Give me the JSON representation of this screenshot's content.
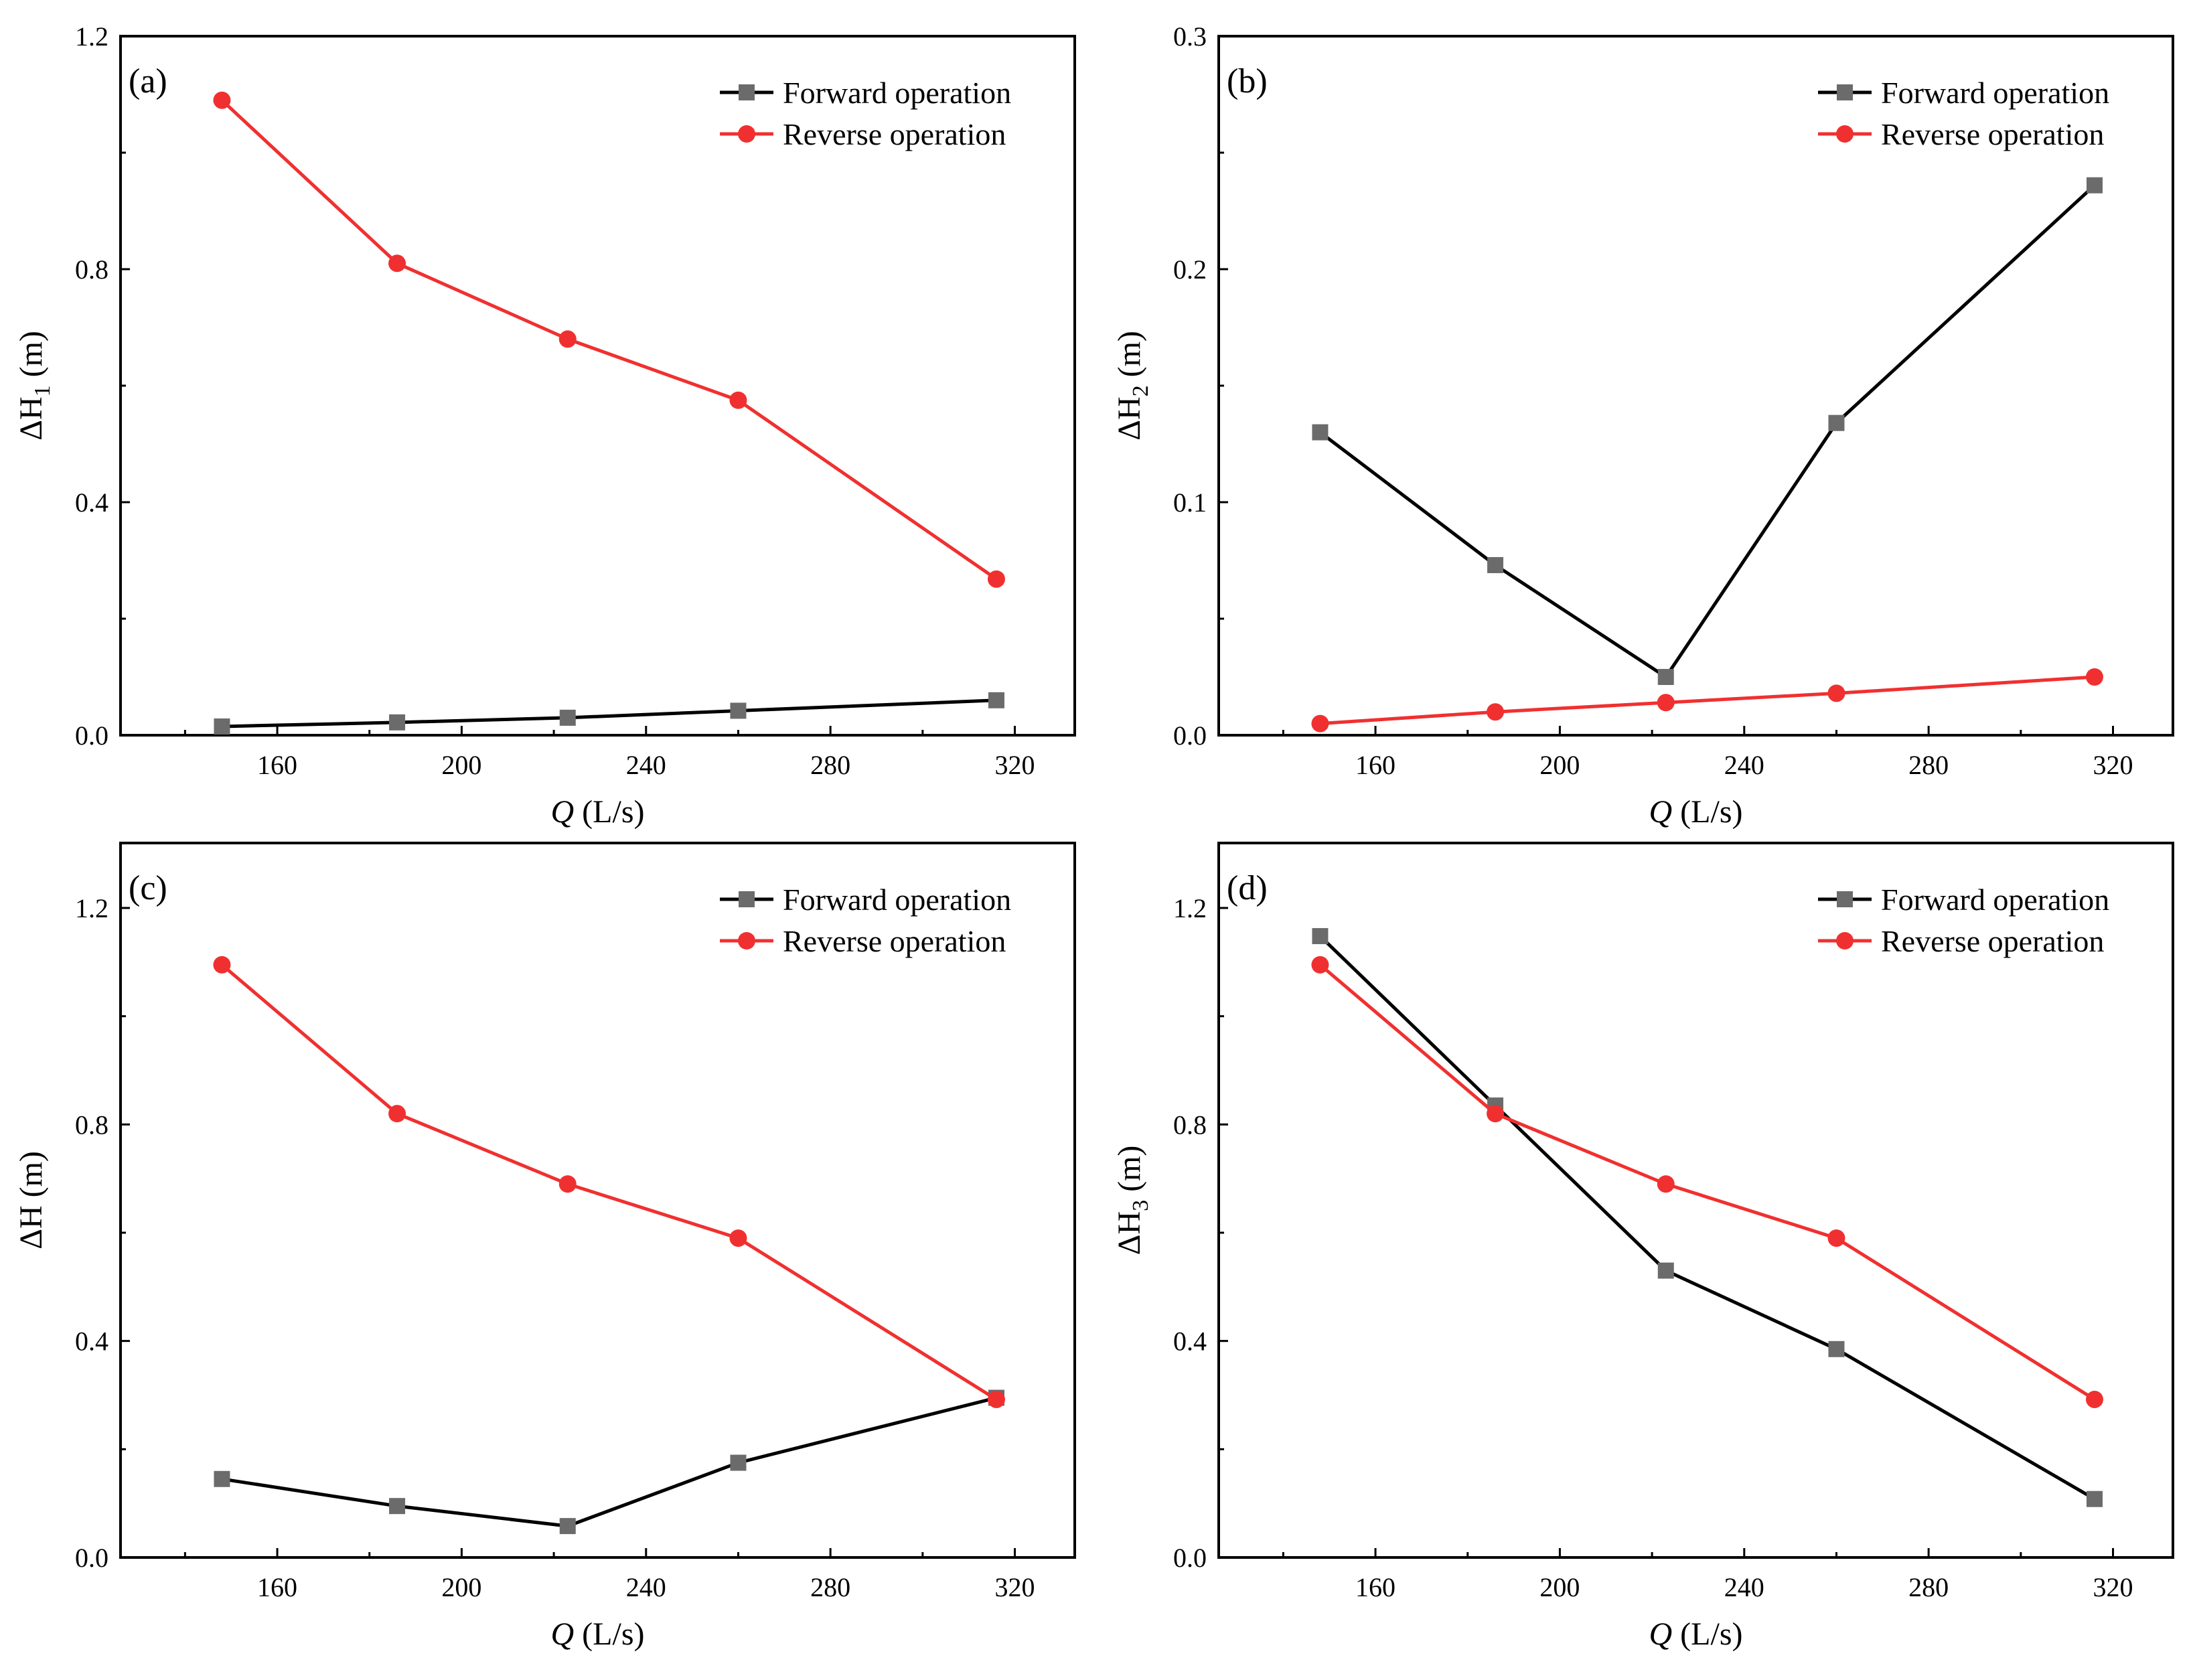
{
  "colors": {
    "forward": "#000000",
    "forward_marker": "#6b6b6b",
    "reverse": "#f03030",
    "axis": "#000000"
  },
  "chart_data": [
    {
      "type": "line",
      "panel_label": "(a)",
      "title": "",
      "xlabel": "Q",
      "xlabel_unit": " (L/s)",
      "ylabel": "ΔH",
      "ylabel_sub": "1",
      "ylabel_unit": " (m)",
      "xlim": [
        126,
        333
      ],
      "ylim": [
        0,
        1.2
      ],
      "xticks": [
        160,
        200,
        240,
        280,
        320
      ],
      "yticks": [
        0.0,
        0.4,
        0.8,
        1.2
      ],
      "ytick_labels": [
        "0.0",
        "0.4",
        "0.8",
        "1.2"
      ],
      "legend": "top-right",
      "x": [
        148,
        186,
        223,
        260,
        316
      ],
      "series": [
        {
          "name": "Forward operation",
          "marker": "square",
          "values": [
            0.015,
            0.022,
            0.03,
            0.042,
            0.06
          ]
        },
        {
          "name": "Reverse operation",
          "marker": "circle",
          "values": [
            1.09,
            0.81,
            0.68,
            0.575,
            0.268
          ]
        }
      ]
    },
    {
      "type": "line",
      "panel_label": "(b)",
      "title": "",
      "xlabel": "Q",
      "xlabel_unit": " (L/s)",
      "ylabel": "ΔH",
      "ylabel_sub": "2",
      "ylabel_unit": " (m)",
      "xlim": [
        126,
        333
      ],
      "ylim": [
        0,
        0.3
      ],
      "xticks": [
        160,
        200,
        240,
        280,
        320
      ],
      "yticks": [
        0.0,
        0.1,
        0.2,
        0.3
      ],
      "ytick_labels": [
        "0.0",
        "0.1",
        "0.2",
        "0.3"
      ],
      "legend": "top-right",
      "x": [
        148,
        186,
        223,
        260,
        316
      ],
      "series": [
        {
          "name": "Forward operation",
          "marker": "square",
          "values": [
            0.13,
            0.073,
            0.025,
            0.134,
            0.236
          ]
        },
        {
          "name": "Reverse operation",
          "marker": "circle",
          "values": [
            0.005,
            0.01,
            0.014,
            0.018,
            0.025
          ]
        }
      ]
    },
    {
      "type": "line",
      "panel_label": "(c)",
      "title": "",
      "xlabel": "Q",
      "xlabel_unit": " (L/s)",
      "ylabel": "ΔH",
      "ylabel_sub": "",
      "ylabel_unit": " (m)",
      "xlim": [
        126,
        333
      ],
      "ylim": [
        0,
        1.32
      ],
      "xticks": [
        160,
        200,
        240,
        280,
        320
      ],
      "yticks": [
        0.0,
        0.4,
        0.8,
        1.2
      ],
      "ytick_labels": [
        "0.0",
        "0.4",
        "0.8",
        "1.2"
      ],
      "legend": "top-right",
      "x": [
        148,
        186,
        223,
        260,
        316
      ],
      "series": [
        {
          "name": "Forward operation",
          "marker": "square",
          "values": [
            0.145,
            0.095,
            0.058,
            0.175,
            0.295
          ]
        },
        {
          "name": "Reverse operation",
          "marker": "circle",
          "values": [
            1.095,
            0.82,
            0.69,
            0.59,
            0.292
          ]
        }
      ]
    },
    {
      "type": "line",
      "panel_label": "(d)",
      "title": "",
      "xlabel": "Q",
      "xlabel_unit": " (L/s)",
      "ylabel": "ΔH",
      "ylabel_sub": "3",
      "ylabel_unit": " (m)",
      "xlim": [
        126,
        333
      ],
      "ylim": [
        0,
        1.32
      ],
      "xticks": [
        160,
        200,
        240,
        280,
        320
      ],
      "yticks": [
        0.0,
        0.4,
        0.8,
        1.2
      ],
      "ytick_labels": [
        "0.0",
        "0.4",
        "0.8",
        "1.2"
      ],
      "legend": "top-right",
      "x": [
        148,
        186,
        223,
        260,
        316
      ],
      "series": [
        {
          "name": "Forward operation",
          "marker": "square",
          "values": [
            1.148,
            0.835,
            0.53,
            0.385,
            0.108
          ]
        },
        {
          "name": "Reverse operation",
          "marker": "circle",
          "values": [
            1.095,
            0.82,
            0.69,
            0.59,
            0.292
          ]
        }
      ]
    }
  ]
}
